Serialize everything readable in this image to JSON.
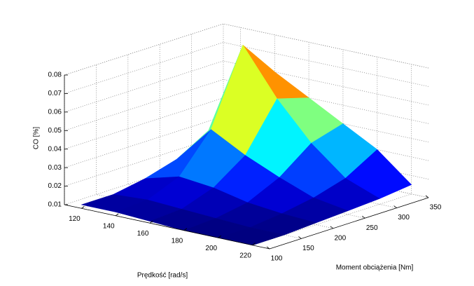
{
  "chart_data": {
    "type": "surface",
    "xlabel": "Prędkość [rad/s]",
    "ylabel": "Moment obciążenia [Nm]",
    "zlabel": "CO [%]",
    "x": [
      120,
      140,
      160,
      180,
      200,
      220
    ],
    "y": [
      100,
      150,
      200,
      250,
      300,
      350
    ],
    "z": [
      [
        0.012,
        0.012,
        0.015,
        0.02,
        0.03,
        0.035
      ],
      [
        0.012,
        0.013,
        0.02,
        0.04,
        0.08,
        0.06
      ],
      [
        0.011,
        0.012,
        0.018,
        0.03,
        0.055,
        0.05
      ],
      [
        0.01,
        0.011,
        0.014,
        0.022,
        0.035,
        0.04
      ],
      [
        0.01,
        0.01,
        0.012,
        0.015,
        0.02,
        0.03
      ],
      [
        0.01,
        0.01,
        0.011,
        0.012,
        0.013,
        0.015
      ]
    ],
    "xlim": [
      110,
      230
    ],
    "xticks": [
      120,
      140,
      160,
      180,
      200,
      220
    ],
    "ylim": [
      100,
      350
    ],
    "yticks": [
      100,
      150,
      200,
      250,
      300,
      350
    ],
    "zlim": [
      0.01,
      0.08
    ],
    "zticks": [
      0.01,
      0.02,
      0.03,
      0.04,
      0.05,
      0.06,
      0.07,
      0.08
    ],
    "colormap": "jet",
    "grid": true
  }
}
